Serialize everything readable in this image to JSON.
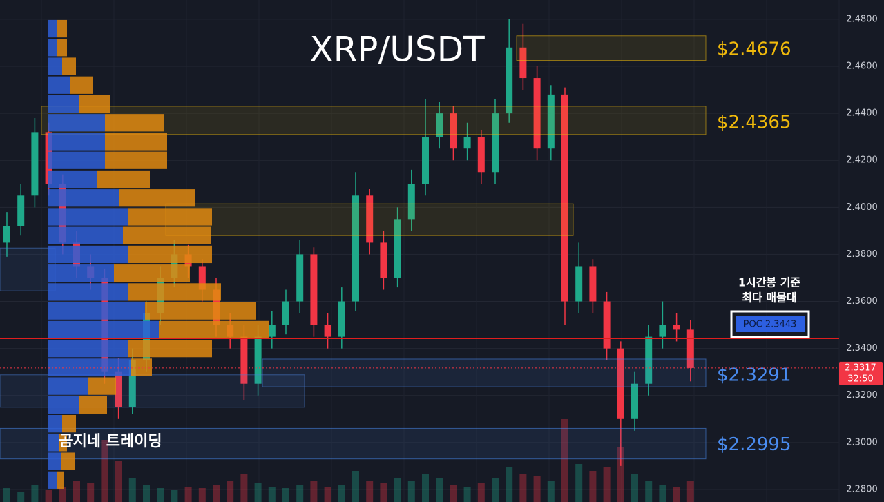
{
  "chart_data": {
    "type": "candlestick",
    "title": "XRP/USDT",
    "watermark": "곰지네 트레이딩",
    "annotation": [
      "1시간봉 기준",
      "최다 매물대"
    ],
    "ylim": [
      2.2747,
      2.4882
    ],
    "yticks": [
      {
        "value": 2.48,
        "label": "2.4800"
      },
      {
        "value": 2.46,
        "label": "2.4600"
      },
      {
        "value": 2.44,
        "label": "2.4400"
      },
      {
        "value": 2.42,
        "label": "2.4200"
      },
      {
        "value": 2.4,
        "label": "2.4000"
      },
      {
        "value": 2.38,
        "label": "2.3800"
      },
      {
        "value": 2.36,
        "label": "2.3600"
      },
      {
        "value": 2.34,
        "label": "2.3400"
      },
      {
        "value": 2.32,
        "label": "2.3200"
      },
      {
        "value": 2.3,
        "label": "2.3000"
      },
      {
        "value": 2.28,
        "label": "2.2800"
      }
    ],
    "grid": true,
    "up_color": "#1fa98a",
    "down_color": "#f23645",
    "open": [
      2.385,
      2.392,
      2.405,
      2.432,
      2.41,
      2.385,
      2.375,
      2.37,
      2.33,
      2.315,
      2.335,
      2.355,
      2.37,
      2.38,
      2.375,
      2.365,
      2.35,
      2.345,
      2.325,
      2.345,
      2.35,
      2.36,
      2.38,
      2.35,
      2.345,
      2.36,
      2.405,
      2.385,
      2.37,
      2.395,
      2.41,
      2.43,
      2.44,
      2.425,
      2.43,
      2.415,
      2.44,
      2.468,
      2.455,
      2.425,
      2.448,
      2.36,
      2.375,
      2.36,
      2.34,
      2.31,
      2.325,
      2.345,
      2.35,
      2.348
    ],
    "high": [
      2.398,
      2.41,
      2.438,
      2.436,
      2.414,
      2.39,
      2.38,
      2.374,
      2.336,
      2.34,
      2.36,
      2.375,
      2.386,
      2.384,
      2.378,
      2.37,
      2.355,
      2.35,
      2.35,
      2.356,
      2.365,
      2.386,
      2.383,
      2.355,
      2.366,
      2.415,
      2.408,
      2.39,
      2.4,
      2.416,
      2.446,
      2.445,
      2.443,
      2.436,
      2.433,
      2.446,
      2.48,
      2.478,
      2.46,
      2.452,
      2.451,
      2.385,
      2.378,
      2.364,
      2.343,
      2.33,
      2.35,
      2.36,
      2.355,
      2.352
    ],
    "low": [
      2.379,
      2.388,
      2.4,
      2.405,
      2.38,
      2.37,
      2.365,
      2.325,
      2.31,
      2.312,
      2.33,
      2.35,
      2.366,
      2.37,
      2.36,
      2.345,
      2.34,
      2.318,
      2.32,
      2.34,
      2.346,
      2.355,
      2.345,
      2.34,
      2.34,
      2.356,
      2.38,
      2.365,
      2.366,
      2.39,
      2.405,
      2.425,
      2.42,
      2.42,
      2.41,
      2.41,
      2.436,
      2.45,
      2.42,
      2.42,
      2.35,
      2.355,
      2.355,
      2.335,
      2.29,
      2.305,
      2.32,
      2.34,
      2.343,
      2.326
    ],
    "close": [
      2.392,
      2.405,
      2.432,
      2.41,
      2.385,
      2.375,
      2.37,
      2.33,
      2.315,
      2.335,
      2.355,
      2.37,
      2.38,
      2.375,
      2.365,
      2.35,
      2.345,
      2.325,
      2.345,
      2.35,
      2.36,
      2.38,
      2.35,
      2.345,
      2.36,
      2.405,
      2.385,
      2.37,
      2.395,
      2.41,
      2.43,
      2.44,
      2.425,
      2.43,
      2.415,
      2.44,
      2.468,
      2.455,
      2.425,
      2.448,
      2.36,
      2.375,
      2.36,
      2.34,
      2.31,
      2.325,
      2.345,
      2.35,
      2.348,
      2.3317
    ],
    "volume": [
      20,
      15,
      25,
      18,
      22,
      30,
      28,
      90,
      60,
      35,
      25,
      20,
      18,
      22,
      20,
      25,
      30,
      40,
      28,
      22,
      20,
      25,
      30,
      22,
      25,
      45,
      30,
      28,
      35,
      30,
      40,
      35,
      25,
      22,
      28,
      35,
      50,
      40,
      38,
      30,
      120,
      55,
      45,
      50,
      80,
      40,
      30,
      25,
      22,
      30
    ],
    "volume_profile": {
      "price_levels": [
        2.48,
        2.472,
        2.464,
        2.456,
        2.448,
        2.44,
        2.432,
        2.424,
        2.416,
        2.408,
        2.4,
        2.392,
        2.384,
        2.376,
        2.368,
        2.36,
        2.352,
        2.344,
        2.336,
        2.328,
        2.32,
        2.312,
        2.304,
        2.296,
        2.288
      ],
      "buy": [
        12,
        12,
        20,
        32,
        45,
        82,
        82,
        82,
        70,
        102,
        115,
        108,
        115,
        95,
        115,
        140,
        160,
        115,
        120,
        58,
        45,
        20,
        15,
        18,
        12
      ],
      "sell": [
        15,
        15,
        20,
        33,
        45,
        85,
        90,
        90,
        77,
        110,
        122,
        128,
        122,
        110,
        135,
        160,
        160,
        122,
        30,
        40,
        40,
        20,
        12,
        20,
        10
      ],
      "buy_color": "#2f5fd6",
      "sell_color": "#e08a10"
    },
    "zones": [
      {
        "top": 2.473,
        "bottom": 2.4625,
        "price": 2.4676,
        "label": "$2.4676",
        "color": "#f0b90b"
      },
      {
        "top": 2.443,
        "bottom": 2.431,
        "price": 2.4365,
        "label": "$2.4365",
        "color": "#f0b90b"
      },
      {
        "top": 2.4015,
        "bottom": 2.388,
        "color": "#f0b90b"
      },
      {
        "top": 2.3827,
        "bottom": 2.3645,
        "color": "#4a7fd6"
      },
      {
        "top": 2.3355,
        "bottom": 2.3237,
        "price": 2.3291,
        "label": "$2.3291",
        "color": "#4a8cf0"
      },
      {
        "top": 2.3288,
        "bottom": 2.315,
        "color": "#4a7fd6"
      },
      {
        "top": 2.306,
        "bottom": 2.293,
        "price": 2.2995,
        "label": "$2.2995",
        "color": "#4a8cf0"
      }
    ],
    "poc": {
      "value": 2.3443,
      "label": "POC  2.3443",
      "color": "#e01e1e"
    },
    "current_price": 2.3317,
    "countdown": "32:50"
  }
}
